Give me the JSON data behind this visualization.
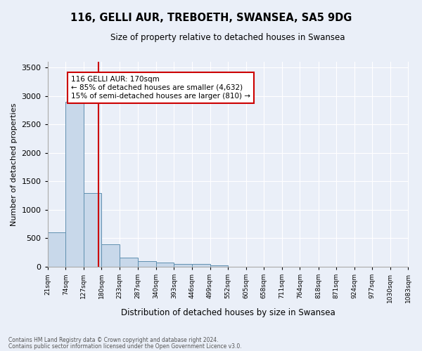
{
  "title": "116, GELLI AUR, TREBOETH, SWANSEA, SA5 9DG",
  "subtitle": "Size of property relative to detached houses in Swansea",
  "xlabel": "Distribution of detached houses by size in Swansea",
  "ylabel": "Number of detached properties",
  "annotation_line1": "116 GELLI AUR: 170sqm",
  "annotation_line2": "← 85% of detached houses are smaller (4,632)",
  "annotation_line3": "15% of semi-detached houses are larger (810) →",
  "property_size": 170,
  "footer_line1": "Contains HM Land Registry data © Crown copyright and database right 2024.",
  "footer_line2": "Contains public sector information licensed under the Open Government Licence v3.0.",
  "bin_edges": [
    21,
    74,
    127,
    180,
    233,
    287,
    340,
    393,
    446,
    499,
    552,
    605,
    658,
    711,
    764,
    818,
    871,
    924,
    977,
    1030,
    1083
  ],
  "bin_labels": [
    "21sqm",
    "74sqm",
    "127sqm",
    "180sqm",
    "233sqm",
    "287sqm",
    "340sqm",
    "393sqm",
    "446sqm",
    "499sqm",
    "552sqm",
    "605sqm",
    "658sqm",
    "711sqm",
    "764sqm",
    "818sqm",
    "871sqm",
    "924sqm",
    "977sqm",
    "1030sqm",
    "1083sqm"
  ],
  "bar_heights": [
    600,
    2900,
    1300,
    400,
    160,
    100,
    70,
    55,
    50,
    30,
    0,
    0,
    0,
    0,
    0,
    0,
    0,
    0,
    0,
    0
  ],
  "bar_color": "#c8d8ea",
  "bar_edge_color": "#6090b0",
  "red_line_color": "#cc0000",
  "annotation_box_color": "#cc0000",
  "background_color": "#eaeff8",
  "ylim": [
    0,
    3600
  ],
  "yticks": [
    0,
    500,
    1000,
    1500,
    2000,
    2500,
    3000,
    3500
  ]
}
